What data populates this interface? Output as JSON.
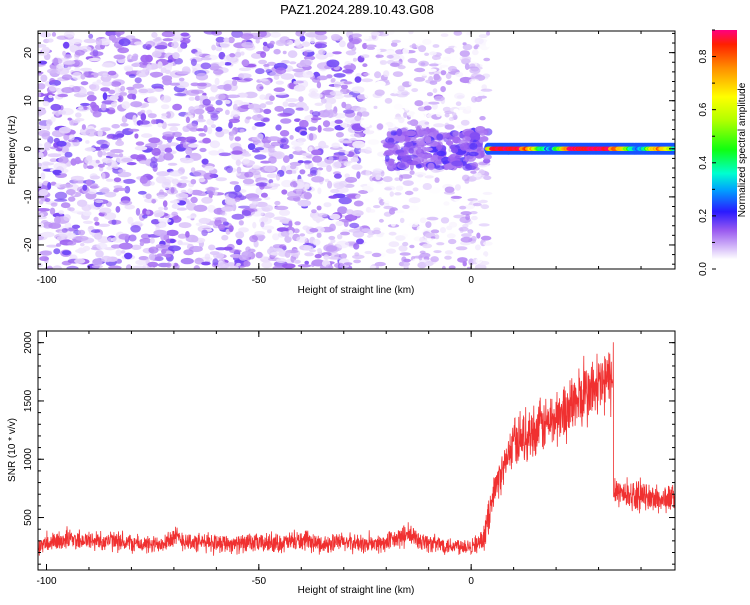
{
  "title": "PAZ1.2024.289.10.43.G08",
  "chart_data": [
    {
      "type": "heatmap",
      "xlabel": "Height of straight line (km)",
      "ylabel": "Frequency (Hz)",
      "xlim": [
        -102,
        48
      ],
      "ylim": [
        -25,
        24.5
      ],
      "xticks": [
        -100,
        -50,
        0
      ],
      "yticks": [
        -20,
        -10,
        0,
        10,
        20
      ],
      "colorbar": {
        "label": "Normalized spectral amplitude",
        "range": [
          0.0,
          0.9
        ],
        "ticks": [
          0.0,
          0.2,
          0.4,
          0.6,
          0.8
        ]
      },
      "description_regions": [
        {
          "x_range": [
            -102,
            -25
          ],
          "y_range": [
            -25,
            24.5
          ],
          "amplitude": [
            0.05,
            0.18
          ]
        },
        {
          "x_range": [
            -25,
            4
          ],
          "y_range": [
            -25,
            24.5
          ],
          "amplitude": [
            0.03,
            0.12
          ]
        },
        {
          "x_range": [
            -20,
            4
          ],
          "y_range": [
            -4,
            4
          ],
          "amplitude": [
            0.12,
            0.2
          ]
        },
        {
          "x_range": [
            4,
            48
          ],
          "y_range": [
            -1,
            1
          ],
          "amplitude": [
            0.35,
            0.9
          ]
        }
      ]
    },
    {
      "type": "line",
      "xlabel": "Height of straight line (km)",
      "ylabel": "SNR (10 * v/v)",
      "xlim": [
        -102,
        48
      ],
      "ylim": [
        50,
        2100
      ],
      "xticks": [
        -100,
        -50,
        0
      ],
      "yticks": [
        500,
        1000,
        1500,
        2000
      ],
      "color": "#f03030",
      "x": [
        -102,
        -95,
        -90,
        -85,
        -80,
        -75,
        -70,
        -65,
        -60,
        -55,
        -50,
        -45,
        -40,
        -35,
        -30,
        -25,
        -20,
        -15,
        -10,
        -5,
        0,
        3,
        5,
        8,
        10,
        15,
        20,
        25,
        30,
        33,
        34,
        36,
        40,
        45,
        48
      ],
      "y": [
        250,
        320,
        300,
        300,
        280,
        260,
        330,
        280,
        290,
        270,
        280,
        280,
        300,
        270,
        290,
        270,
        280,
        350,
        280,
        260,
        260,
        300,
        700,
        950,
        1150,
        1250,
        1350,
        1500,
        1620,
        1680,
        750,
        700,
        680,
        650,
        680
      ]
    }
  ]
}
